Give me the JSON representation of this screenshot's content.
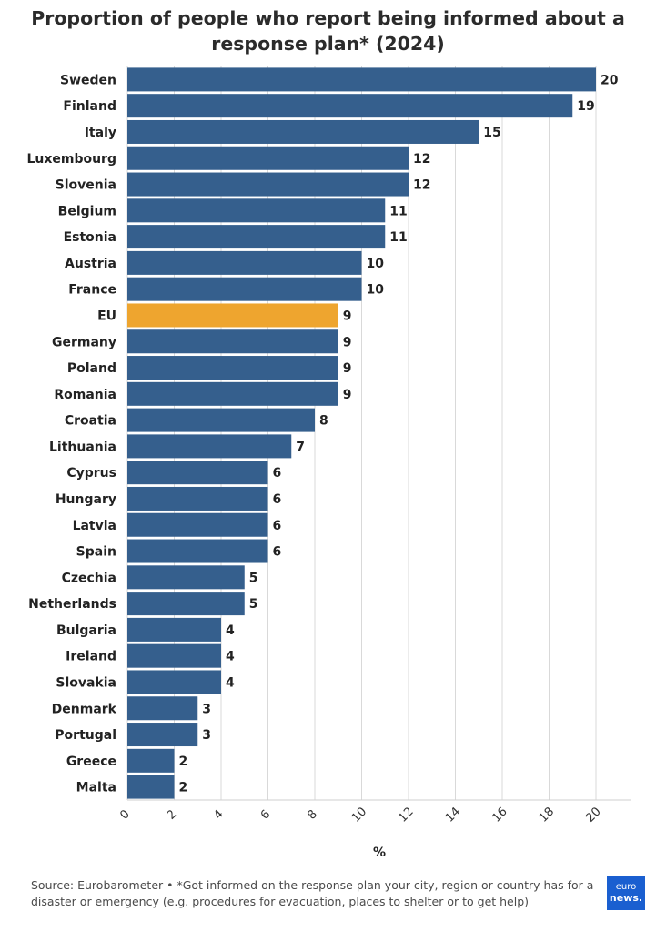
{
  "title_line1": "Proportion of people who report being informed about a",
  "title_line2": "response plan* (2024)",
  "footer_text": "Source: Eurobarometer • *Got informed on the response plan your city, region or country has for a disaster or emergency (e.g. procedures for evacuation, places to shelter or to get help)",
  "logo": {
    "line1": "euro",
    "line2": "news."
  },
  "colors": {
    "bar": "#355f8d",
    "highlight": "#eea52f",
    "grid": "#d9d9d9",
    "logo_bg": "#1a5fd0"
  },
  "chart_data": {
    "type": "bar",
    "orientation": "horizontal",
    "categories": [
      "Sweden",
      "Finland",
      "Italy",
      "Luxembourg",
      "Slovenia",
      "Belgium",
      "Estonia",
      "Austria",
      "France",
      "EU",
      "Germany",
      "Poland",
      "Romania",
      "Croatia",
      "Lithuania",
      "Cyprus",
      "Hungary",
      "Latvia",
      "Spain",
      "Czechia",
      "Netherlands",
      "Bulgaria",
      "Ireland",
      "Slovakia",
      "Denmark",
      "Portugal",
      "Greece",
      "Malta"
    ],
    "values": [
      20,
      19,
      15,
      12,
      12,
      11,
      11,
      10,
      10,
      9,
      9,
      9,
      9,
      8,
      7,
      6,
      6,
      6,
      6,
      5,
      5,
      4,
      4,
      4,
      3,
      3,
      2,
      2
    ],
    "highlight": "EU",
    "xlabel": "%",
    "ylabel": "",
    "xlim": [
      0,
      21.5
    ],
    "xticks": [
      0,
      2,
      4,
      6,
      8,
      10,
      12,
      14,
      16,
      18,
      20
    ],
    "grid": true
  }
}
